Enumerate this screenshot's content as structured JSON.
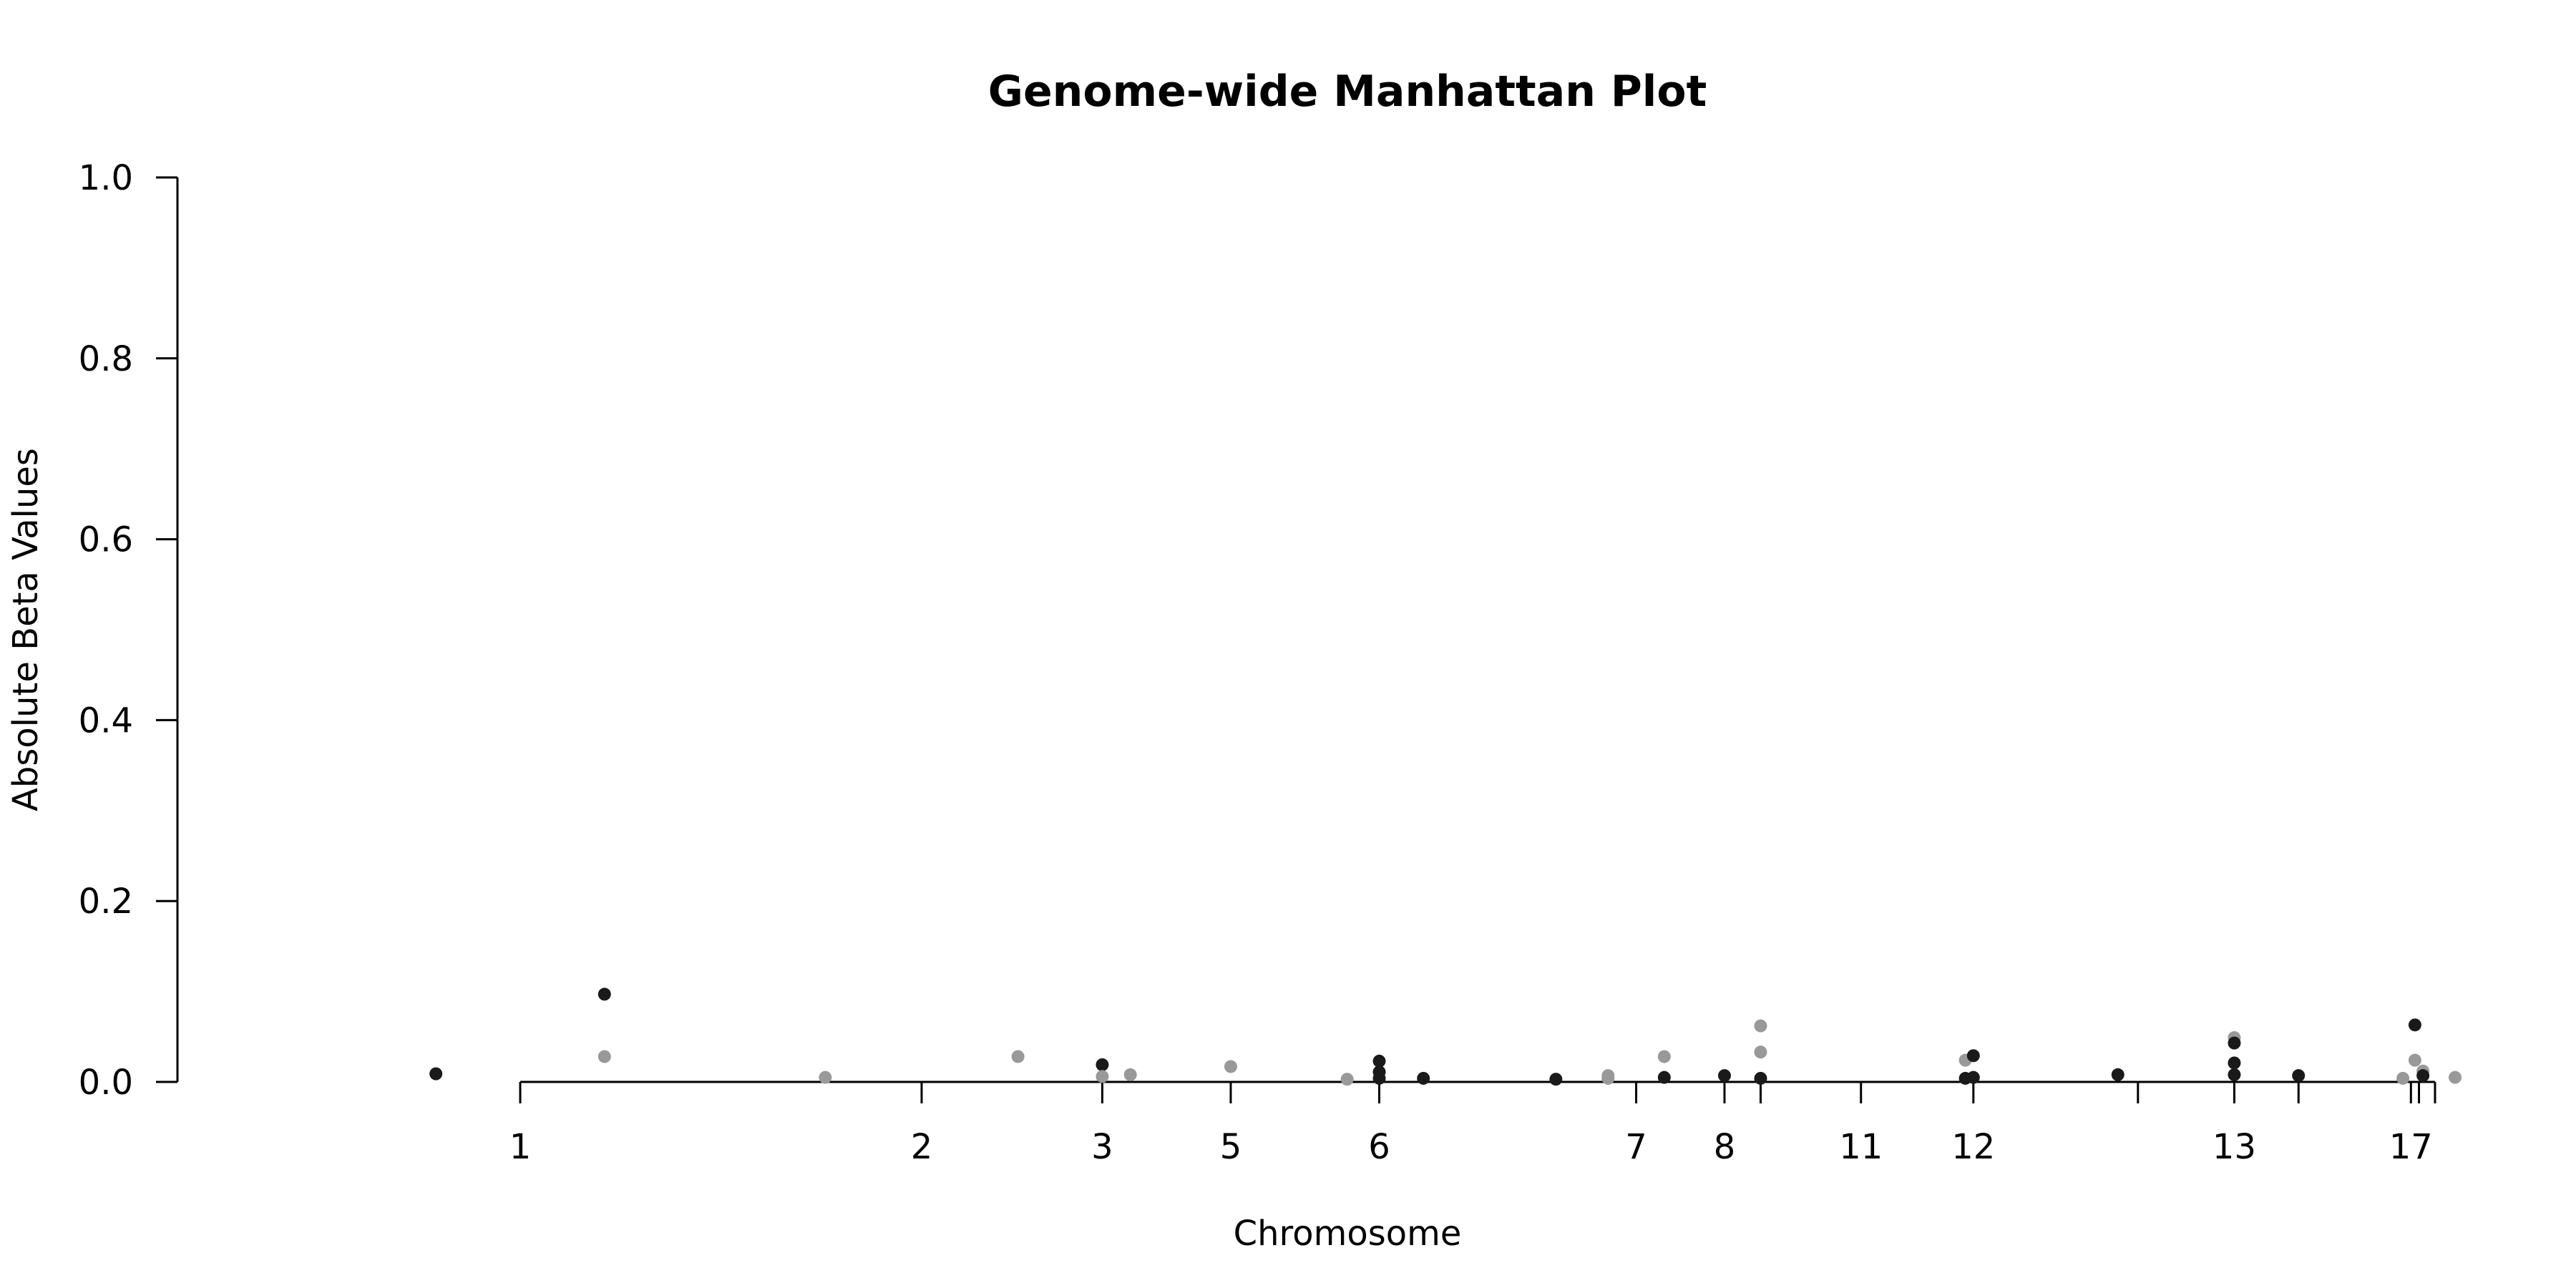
{
  "chart_data": {
    "type": "scatter",
    "title": "Genome-wide Manhattan Plot",
    "xlabel": "Chromosome",
    "ylabel": "Absolute Beta Values",
    "ylim": [
      0,
      1
    ],
    "yticks": [
      "0.0",
      "0.2",
      "0.4",
      "0.6",
      "0.8",
      "1.0"
    ],
    "grid": false,
    "legend": "none",
    "x_ticks": [
      {
        "label": "1",
        "pos": 0
      },
      {
        "label": "2",
        "pos": 1
      },
      {
        "label": "3",
        "pos": 1.45
      },
      {
        "label": "5",
        "pos": 1.77
      },
      {
        "label": "6",
        "pos": 2.14
      },
      {
        "label": "7",
        "pos": 2.78
      },
      {
        "label": "8",
        "pos": 3.0
      },
      {
        "label": "",
        "pos": 3.09
      },
      {
        "label": "11",
        "pos": 3.34
      },
      {
        "label": "12",
        "pos": 3.62
      },
      {
        "label": "",
        "pos": 4.03
      },
      {
        "label": "13",
        "pos": 4.27
      },
      {
        "label": "",
        "pos": 4.43
      },
      {
        "label": "17",
        "pos": 4.71
      },
      {
        "label": "",
        "pos": 4.73
      },
      {
        "label": "",
        "pos": 4.77
      }
    ],
    "xlim": [
      -0.85,
      4.95
    ],
    "colors": {
      "dark": "#1a1a1a",
      "light": "#999999"
    },
    "points": [
      {
        "x": -0.21,
        "y": 0.009,
        "c": "dark"
      },
      {
        "x": 0.21,
        "y": 0.097,
        "c": "dark"
      },
      {
        "x": 0.21,
        "y": 0.028,
        "c": "light"
      },
      {
        "x": 0.76,
        "y": 0.005,
        "c": "light"
      },
      {
        "x": 1.24,
        "y": 0.028,
        "c": "light"
      },
      {
        "x": 1.45,
        "y": 0.019,
        "c": "dark"
      },
      {
        "x": 1.45,
        "y": 0.006,
        "c": "light"
      },
      {
        "x": 1.52,
        "y": 0.008,
        "c": "light"
      },
      {
        "x": 1.77,
        "y": 0.017,
        "c": "light"
      },
      {
        "x": 2.06,
        "y": 0.003,
        "c": "light"
      },
      {
        "x": 2.14,
        "y": 0.023,
        "c": "dark"
      },
      {
        "x": 2.14,
        "y": 0.011,
        "c": "dark"
      },
      {
        "x": 2.14,
        "y": 0.004,
        "c": "dark"
      },
      {
        "x": 2.25,
        "y": 0.004,
        "c": "dark"
      },
      {
        "x": 2.58,
        "y": 0.003,
        "c": "dark"
      },
      {
        "x": 2.71,
        "y": 0.007,
        "c": "light"
      },
      {
        "x": 2.71,
        "y": 0.004,
        "c": "light"
      },
      {
        "x": 2.85,
        "y": 0.028,
        "c": "light"
      },
      {
        "x": 2.85,
        "y": 0.005,
        "c": "dark"
      },
      {
        "x": 3.0,
        "y": 0.007,
        "c": "dark"
      },
      {
        "x": 3.09,
        "y": 0.062,
        "c": "light"
      },
      {
        "x": 3.09,
        "y": 0.033,
        "c": "light"
      },
      {
        "x": 3.09,
        "y": 0.004,
        "c": "dark"
      },
      {
        "x": 3.6,
        "y": 0.024,
        "c": "light"
      },
      {
        "x": 3.6,
        "y": 0.004,
        "c": "dark"
      },
      {
        "x": 3.62,
        "y": 0.029,
        "c": "dark"
      },
      {
        "x": 3.62,
        "y": 0.005,
        "c": "dark"
      },
      {
        "x": 3.98,
        "y": 0.008,
        "c": "dark"
      },
      {
        "x": 4.27,
        "y": 0.049,
        "c": "light"
      },
      {
        "x": 4.27,
        "y": 0.043,
        "c": "dark"
      },
      {
        "x": 4.27,
        "y": 0.021,
        "c": "dark"
      },
      {
        "x": 4.27,
        "y": 0.008,
        "c": "dark"
      },
      {
        "x": 4.43,
        "y": 0.007,
        "c": "dark"
      },
      {
        "x": 4.69,
        "y": 0.004,
        "c": "light"
      },
      {
        "x": 4.72,
        "y": 0.063,
        "c": "dark"
      },
      {
        "x": 4.72,
        "y": 0.024,
        "c": "light"
      },
      {
        "x": 4.74,
        "y": 0.012,
        "c": "light"
      },
      {
        "x": 4.74,
        "y": 0.007,
        "c": "dark"
      },
      {
        "x": 4.82,
        "y": 0.005,
        "c": "light"
      }
    ]
  }
}
